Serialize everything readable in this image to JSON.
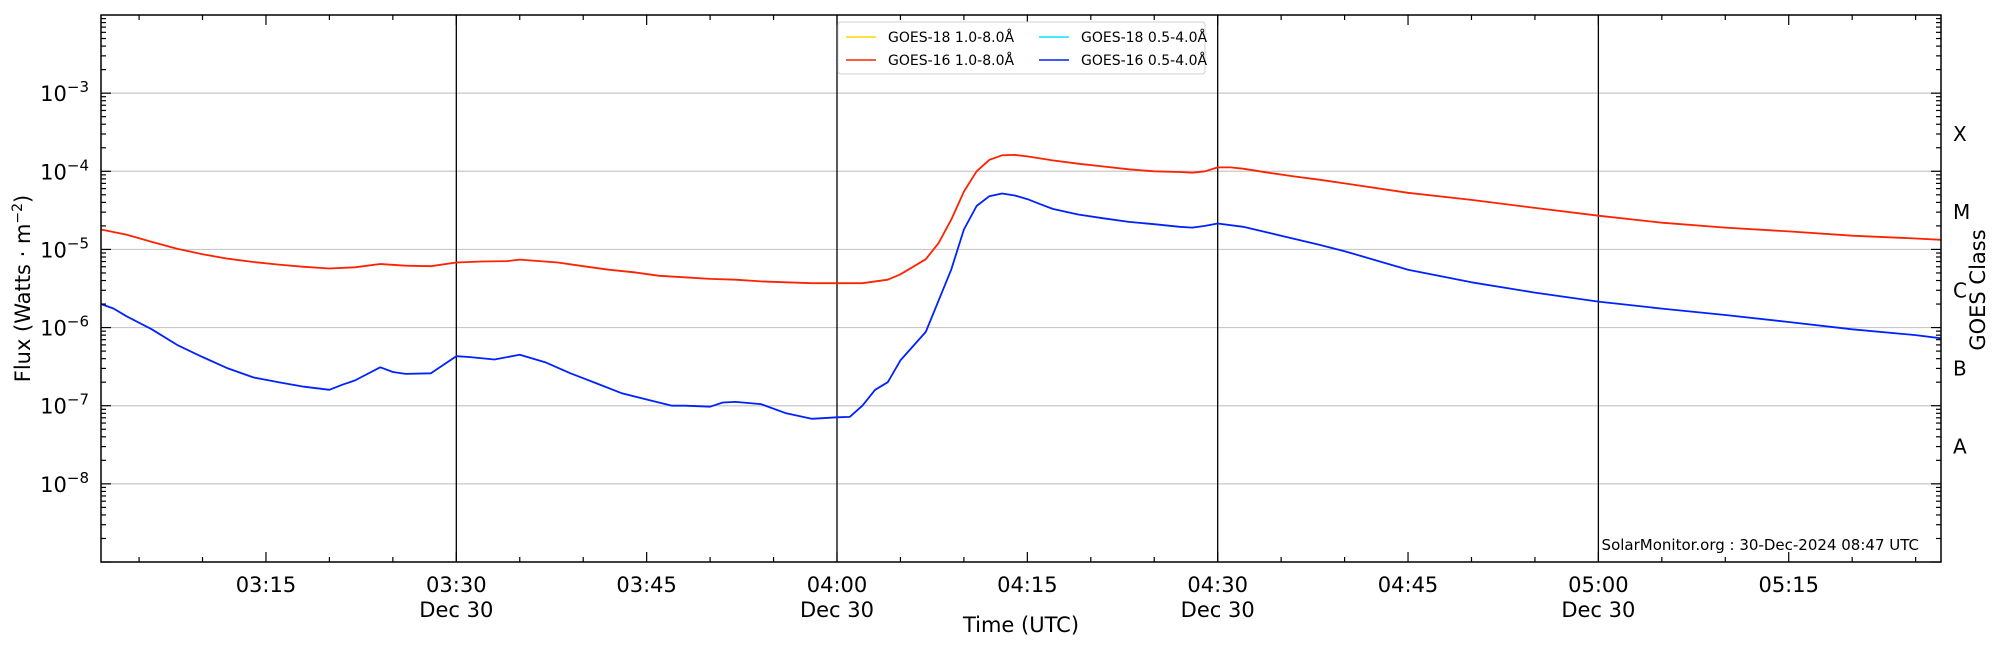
{
  "chart_data": {
    "type": "line",
    "title": "",
    "xlabel": "Time (UTC)",
    "ylabel": "Flux (Watts · m",
    "ylabel_sup": "−2",
    "ylabel_close": ")",
    "right_label": "GOES Class",
    "yscale": "log",
    "xlim": [
      "03:02",
      "05:27"
    ],
    "ylim": [
      1e-09,
      0.01
    ],
    "x_ticks": [
      {
        "time": "03:15",
        "date": ""
      },
      {
        "time": "03:30",
        "date": "Dec 30"
      },
      {
        "time": "03:45",
        "date": ""
      },
      {
        "time": "04:00",
        "date": "Dec 30"
      },
      {
        "time": "04:15",
        "date": ""
      },
      {
        "time": "04:30",
        "date": "Dec 30"
      },
      {
        "time": "04:45",
        "date": ""
      },
      {
        "time": "05:00",
        "date": "Dec 30"
      },
      {
        "time": "05:15",
        "date": ""
      }
    ],
    "y_ticks": [
      {
        "value": 1e-08,
        "base": "10",
        "exp": "−8"
      },
      {
        "value": 1e-07,
        "base": "10",
        "exp": "−7"
      },
      {
        "value": 1e-06,
        "base": "10",
        "exp": "−6"
      },
      {
        "value": 1e-05,
        "base": "10",
        "exp": "−5"
      },
      {
        "value": 0.0001,
        "base": "10",
        "exp": "−4"
      },
      {
        "value": 0.001,
        "base": "10",
        "exp": "−3"
      }
    ],
    "goes_classes": [
      {
        "label": "A",
        "value": 3e-08
      },
      {
        "label": "B",
        "value": 3e-07
      },
      {
        "label": "C",
        "value": 3e-06
      },
      {
        "label": "M",
        "value": 3e-05
      },
      {
        "label": "X",
        "value": 0.0003
      }
    ],
    "vertical_lines": [
      "03:30",
      "04:00",
      "04:30",
      "05:00"
    ],
    "grid": "horizontal",
    "legend_position": "top-center",
    "credit": "SolarMonitor.org : 30-Dec-2024 08:47 UTC",
    "series": [
      {
        "name": "GOES-18 1.0-8.0Å",
        "color": "#ffd500",
        "x": [],
        "y": []
      },
      {
        "name": "GOES-18 0.5-4.0Å",
        "color": "#00e5ff",
        "x": [],
        "y": []
      },
      {
        "name": "GOES-16 1.0-8.0Å",
        "color": "#ff2200",
        "x": [
          "03:02",
          "03:04",
          "03:06",
          "03:08",
          "03:10",
          "03:12",
          "03:14",
          "03:16",
          "03:18",
          "03:20",
          "03:22",
          "03:24",
          "03:26",
          "03:28",
          "03:30",
          "03:32",
          "03:34",
          "03:35",
          "03:38",
          "03:40",
          "03:42",
          "03:44",
          "03:46",
          "03:48",
          "03:50",
          "03:52",
          "03:54",
          "03:56",
          "03:58",
          "04:00",
          "04:02",
          "04:04",
          "04:05",
          "04:06",
          "04:07",
          "04:08",
          "04:09",
          "04:10",
          "04:11",
          "04:12",
          "04:13",
          "04:14",
          "04:15",
          "04:17",
          "04:19",
          "04:21",
          "04:23",
          "04:25",
          "04:27",
          "04:28",
          "04:29",
          "04:30",
          "04:31",
          "04:32",
          "04:34",
          "04:36",
          "04:38",
          "04:40",
          "04:45",
          "04:50",
          "04:55",
          "05:00",
          "05:05",
          "05:10",
          "05:15",
          "05:20",
          "05:25",
          "05:27"
        ],
        "y": [
          1.8e-05,
          1.55e-05,
          1.25e-05,
          1.02e-05,
          8.7e-06,
          7.6e-06,
          6.9e-06,
          6.4e-06,
          6e-06,
          5.7e-06,
          5.9e-06,
          6.5e-06,
          6.2e-06,
          6.1e-06,
          6.8e-06,
          7e-06,
          7.1e-06,
          7.4e-06,
          6.8e-06,
          6.1e-06,
          5.5e-06,
          5.1e-06,
          4.6e-06,
          4.4e-06,
          4.2e-06,
          4.1e-06,
          3.9e-06,
          3.8e-06,
          3.7e-06,
          3.7e-06,
          3.7e-06,
          4.1e-06,
          4.8e-06,
          6e-06,
          7.5e-06,
          1.2e-05,
          2.4e-05,
          5.5e-05,
          0.0001,
          0.00014,
          0.00016,
          0.000162,
          0.000155,
          0.000138,
          0.000125,
          0.000115,
          0.000106,
          0.0001,
          9.8e-05,
          9.6e-05,
          0.0001,
          0.000112,
          0.000112,
          0.000108,
          9.6e-05,
          8.6e-05,
          7.8e-05,
          7e-05,
          5.3e-05,
          4.3e-05,
          3.4e-05,
          2.7e-05,
          2.2e-05,
          1.9e-05,
          1.7e-05,
          1.5e-05,
          1.38e-05,
          1.33e-05
        ]
      },
      {
        "name": "GOES-16 0.5-4.0Å",
        "color": "#0022ff",
        "x": [
          "03:02",
          "03:03",
          "03:04",
          "03:06",
          "03:08",
          "03:10",
          "03:12",
          "03:14",
          "03:16",
          "03:18",
          "03:20",
          "03:21",
          "03:22",
          "03:24",
          "03:25",
          "03:26",
          "03:28",
          "03:30",
          "03:31",
          "03:33",
          "03:35",
          "03:37",
          "03:39",
          "03:41",
          "03:43",
          "03:45",
          "03:47",
          "03:48",
          "03:50",
          "03:51",
          "03:52",
          "03:54",
          "03:56",
          "03:58",
          "04:00",
          "04:01",
          "04:02",
          "04:03",
          "04:04",
          "04:05",
          "04:06",
          "04:07",
          "04:08",
          "04:09",
          "04:10",
          "04:11",
          "04:12",
          "04:13",
          "04:14",
          "04:15",
          "04:16",
          "04:17",
          "04:19",
          "04:21",
          "04:23",
          "04:25",
          "04:27",
          "04:28",
          "04:29",
          "04:30",
          "04:32",
          "04:35",
          "04:38",
          "04:40",
          "04:45",
          "04:50",
          "04:55",
          "05:00",
          "05:05",
          "05:10",
          "05:15",
          "05:20",
          "05:25",
          "05:27"
        ],
        "y": [
          2e-06,
          1.75e-06,
          1.4e-06,
          9.5e-07,
          6e-07,
          4.2e-07,
          3e-07,
          2.3e-07,
          2e-07,
          1.75e-07,
          1.6e-07,
          1.85e-07,
          2.1e-07,
          3.1e-07,
          2.7e-07,
          2.55e-07,
          2.6e-07,
          4.3e-07,
          4.2e-07,
          3.9e-07,
          4.5e-07,
          3.6e-07,
          2.6e-07,
          1.95e-07,
          1.45e-07,
          1.2e-07,
          1e-07,
          1e-07,
          9.7e-08,
          1.1e-07,
          1.12e-07,
          1.05e-07,
          8e-08,
          6.8e-08,
          7.1e-08,
          7.2e-08,
          1e-07,
          1.6e-07,
          2e-07,
          3.8e-07,
          5.8e-07,
          8.8e-07,
          2.2e-06,
          5.5e-06,
          1.8e-05,
          3.6e-05,
          4.8e-05,
          5.2e-05,
          4.9e-05,
          4.4e-05,
          3.8e-05,
          3.3e-05,
          2.8e-05,
          2.5e-05,
          2.25e-05,
          2.1e-05,
          1.95e-05,
          1.9e-05,
          2e-05,
          2.15e-05,
          1.95e-05,
          1.5e-05,
          1.15e-05,
          9.5e-06,
          5.5e-06,
          3.8e-06,
          2.8e-06,
          2.15e-06,
          1.75e-06,
          1.45e-06,
          1.18e-06,
          9.5e-07,
          8e-07,
          7.3e-07
        ]
      }
    ]
  }
}
